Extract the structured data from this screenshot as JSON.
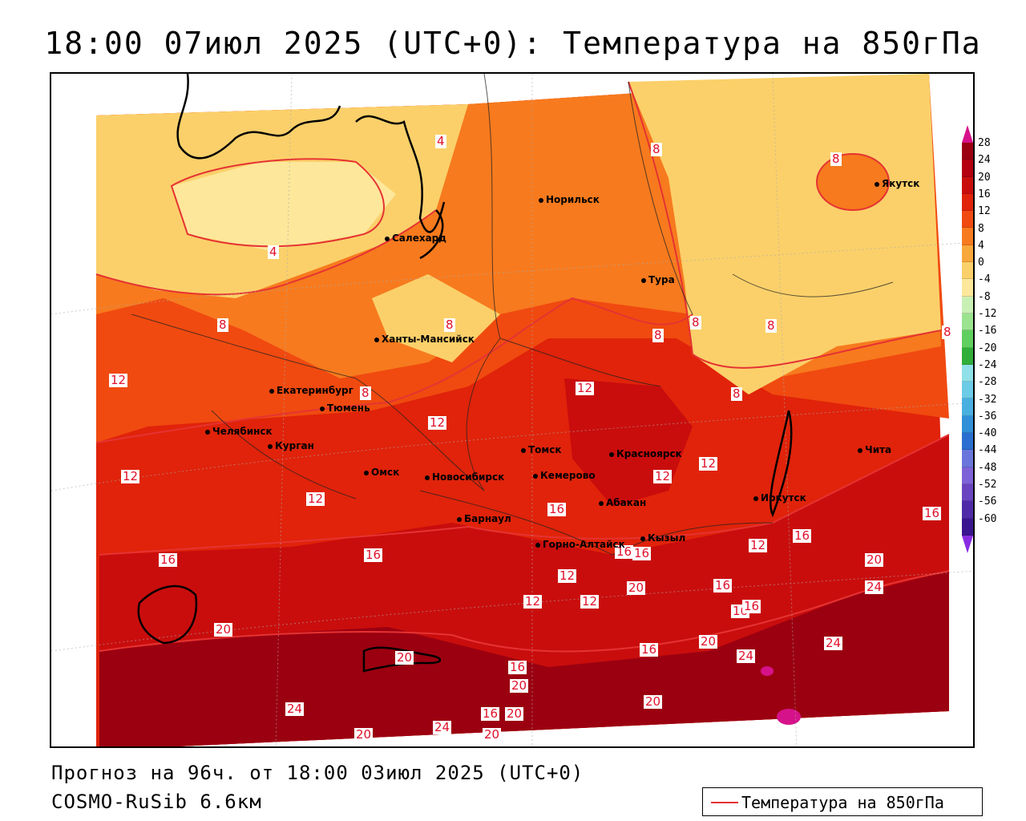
{
  "title": "18:00 07июл 2025 (UTC+0): Температура на 850гПа",
  "footer": {
    "forecast": "Прогноз на 96ч. от 18:00 03июл 2025 (UTC+0)",
    "model": "COSMO-RuSib 6.6км"
  },
  "legend": {
    "label": "Температура на 850гПа",
    "line_color": "#e53333"
  },
  "scale": {
    "ticks": [
      "28",
      "24",
      "20",
      "16",
      "12",
      "8",
      "4",
      "0",
      "-4",
      "-8",
      "-12",
      "-16",
      "-20",
      "-24",
      "-28",
      "-32",
      "-36",
      "-40",
      "-44",
      "-48",
      "-52",
      "-56",
      "-60"
    ],
    "colors": [
      "#9b0010",
      "#b40010",
      "#c90d0d",
      "#e0230a",
      "#f04a10",
      "#f77a1e",
      "#f9a83b",
      "#fbd06a",
      "#fde79a",
      "#c9f0b4",
      "#9be38f",
      "#5fcf5f",
      "#2fae3a",
      "#8fe0e8",
      "#6ccbe6",
      "#48afe0",
      "#2f8fd8",
      "#2a6ed0",
      "#6a76dc",
      "#7e62d8",
      "#6a44c0",
      "#4f2aa8",
      "#3b1590"
    ]
  },
  "cities": [
    {
      "name": "Норильск"
    },
    {
      "name": "Якутск"
    },
    {
      "name": "Салехард"
    },
    {
      "name": "Тура"
    },
    {
      "name": "Ханты-Мансийск"
    },
    {
      "name": "Екатеринбург"
    },
    {
      "name": "Тюмень"
    },
    {
      "name": "Челябинск"
    },
    {
      "name": "Курган"
    },
    {
      "name": "Омск"
    },
    {
      "name": "Новосибирск"
    },
    {
      "name": "Томск"
    },
    {
      "name": "Кемерово"
    },
    {
      "name": "Красноярск"
    },
    {
      "name": "Абакан"
    },
    {
      "name": "Барнаул"
    },
    {
      "name": "Горно-Алтайск"
    },
    {
      "name": "Кызыл"
    },
    {
      "name": "Иркутск"
    },
    {
      "name": "Чита"
    }
  ],
  "contour_labels": [
    "4",
    "4",
    "8",
    "8",
    "8",
    "8",
    "8",
    "8",
    "8",
    "8",
    "8",
    "8",
    "12",
    "12",
    "12",
    "12",
    "12",
    "12",
    "12",
    "12",
    "12",
    "12",
    "12",
    "16",
    "16",
    "16",
    "16",
    "16",
    "16",
    "16",
    "16",
    "16",
    "16",
    "16",
    "16",
    "16",
    "20",
    "20",
    "20",
    "20",
    "20",
    "20",
    "20",
    "20",
    "20",
    "20",
    "24",
    "24",
    "24",
    "24",
    "24"
  ],
  "colors": {
    "cold": "#fde79a",
    "cool": "#fbd06a",
    "mid": "#f77a1e",
    "warm": "#f04a10",
    "hot": "#c90d0d",
    "very_hot": "#9b0010",
    "isoline": "#e53333"
  }
}
